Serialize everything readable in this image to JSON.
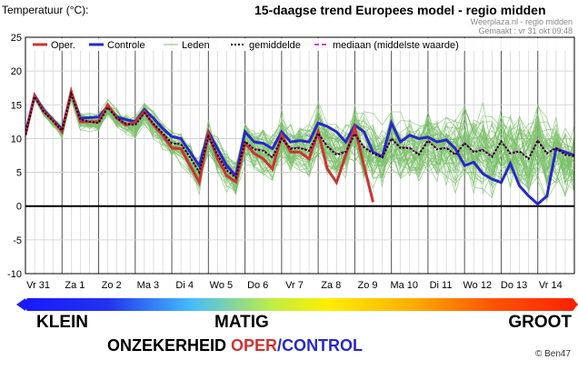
{
  "header": {
    "ylabel": "Temperatuur (°C):",
    "title": "15-daagse trend Europees model - regio midden",
    "source": "Weerplaza.nl - regio midden",
    "made": "Gemaakt : vr 31 okt 09:48"
  },
  "legend": {
    "oper": "Oper.",
    "control": "Controle",
    "members": "Leden",
    "mean": "gemiddelde",
    "median": "mediaan (middelste waarde)"
  },
  "scale": {
    "left": "KLEIN",
    "mid": "MATIG",
    "right": "GROOT",
    "word1": "ONZEKERHEID",
    "word2": "OPER",
    "slash": "/",
    "word3": "CONTROL"
  },
  "copyright": "© Ben47",
  "colors": {
    "oper": "#cc3333",
    "control": "#2828c8",
    "members": "#7ac06a",
    "mean": "#000000",
    "median": "#cc00cc",
    "zero_line": "#000000"
  },
  "chart_data": {
    "type": "line",
    "ylim": [
      -10,
      25
    ],
    "yticks": [
      -10,
      -5,
      0,
      5,
      10,
      15,
      20,
      25
    ],
    "xlim": [
      0,
      15
    ],
    "xticks": [
      {
        "x": 0.35,
        "label": "Vr 31"
      },
      {
        "x": 1.35,
        "label": "Za 1"
      },
      {
        "x": 2.35,
        "label": "Zo 2"
      },
      {
        "x": 3.35,
        "label": "Ma 3"
      },
      {
        "x": 4.35,
        "label": "Di 4"
      },
      {
        "x": 5.35,
        "label": "Wo 5"
      },
      {
        "x": 6.35,
        "label": "Do 6"
      },
      {
        "x": 7.35,
        "label": "Vr 7"
      },
      {
        "x": 8.35,
        "label": "Za 8"
      },
      {
        "x": 9.35,
        "label": "Zo 9"
      },
      {
        "x": 10.35,
        "label": "Ma 10"
      },
      {
        "x": 11.35,
        "label": "Di 11"
      },
      {
        "x": 12.35,
        "label": "Wo 12"
      },
      {
        "x": 13.35,
        "label": "Do 13"
      },
      {
        "x": 14.35,
        "label": "Vr 14"
      }
    ],
    "series": [
      {
        "name": "Oper.",
        "x": [
          0,
          0.25,
          0.5,
          0.75,
          1,
          1.25,
          1.5,
          1.75,
          2,
          2.25,
          2.5,
          2.75,
          3,
          3.25,
          3.5,
          3.75,
          4,
          4.25,
          4.5,
          4.75,
          5,
          5.25,
          5.5,
          5.75,
          6,
          6.25,
          6.5,
          6.75,
          7,
          7.25,
          7.5,
          7.75,
          8,
          8.25,
          8.5,
          8.75,
          9,
          9.25,
          9.5
        ],
        "y": [
          10.5,
          16.3,
          14,
          12.7,
          11,
          17,
          12.5,
          12.5,
          12.5,
          15,
          13,
          12,
          12.4,
          14,
          12,
          10.5,
          8.6,
          8.5,
          6,
          3.5,
          10.8,
          7,
          4.5,
          3.6,
          9.3,
          7.8,
          7,
          5.5,
          10.5,
          8,
          8,
          7,
          11,
          5.5,
          3.5,
          7.5,
          11.6,
          6,
          0.6
        ]
      },
      {
        "name": "Controle",
        "x": [
          0,
          0.25,
          0.5,
          0.75,
          1,
          1.25,
          1.5,
          1.75,
          2,
          2.25,
          2.5,
          2.75,
          3,
          3.25,
          3.5,
          3.75,
          4,
          4.25,
          4.5,
          4.75,
          5,
          5.25,
          5.5,
          5.75,
          6,
          6.25,
          6.5,
          6.75,
          7,
          7.25,
          7.5,
          7.75,
          8,
          8.25,
          8.5,
          8.75,
          9,
          9.25,
          9.5,
          9.75,
          10,
          10.25,
          10.5,
          10.75,
          11,
          11.25,
          11.5,
          11.75,
          12,
          12.25,
          12.5,
          12.75,
          13,
          13.25,
          13.5,
          13.75,
          14,
          14.25,
          14.5,
          14.75,
          15
        ],
        "y": [
          10.8,
          16.4,
          14.2,
          12.8,
          11.3,
          16.8,
          13,
          13.1,
          13.2,
          14.8,
          13.2,
          12.8,
          12.5,
          14.3,
          13,
          11.5,
          10.3,
          10,
          8,
          6,
          11,
          8.5,
          6,
          4.5,
          11,
          9.5,
          9.3,
          8.5,
          11,
          9.5,
          9.7,
          9.5,
          12.3,
          11.8,
          11,
          9.5,
          12,
          11,
          8,
          7.3,
          12.3,
          9.5,
          10.5,
          10,
          10.2,
          9.5,
          9.8,
          8.5,
          6,
          6.5,
          4.8,
          4,
          3.5,
          6.3,
          3,
          1.5,
          0.3,
          1.5,
          8.5,
          8,
          7.5
        ]
      },
      {
        "name": "gemiddelde",
        "x": [
          0,
          0.25,
          0.5,
          0.75,
          1,
          1.25,
          1.5,
          1.75,
          2,
          2.25,
          2.5,
          2.75,
          3,
          3.25,
          3.5,
          3.75,
          4,
          4.25,
          4.5,
          4.75,
          5,
          5.25,
          5.5,
          5.75,
          6,
          6.25,
          6.5,
          6.75,
          7,
          7.25,
          7.5,
          7.75,
          8,
          8.25,
          8.5,
          8.75,
          9,
          9.25,
          9.5,
          9.75,
          10,
          10.25,
          10.5,
          10.75,
          11,
          11.25,
          11.5,
          11.75,
          12,
          12.25,
          12.5,
          12.75,
          13,
          13.25,
          13.5,
          13.75,
          14,
          14.25,
          14.5,
          14.75,
          15
        ],
        "y": [
          10.6,
          16.2,
          14,
          12.6,
          11.2,
          16.6,
          12.8,
          12.5,
          12.3,
          14.6,
          13,
          12.2,
          12,
          13.8,
          12.2,
          10.8,
          9.3,
          9.2,
          7.2,
          5,
          10.3,
          7.6,
          5.3,
          4.2,
          9.6,
          8.4,
          8.2,
          7.2,
          10,
          8.5,
          8.6,
          8.2,
          10.8,
          8.8,
          7.6,
          8,
          10.7,
          8.7,
          7.8,
          7.2,
          10,
          8.6,
          8.6,
          7.6,
          9.7,
          8.4,
          8.6,
          7.6,
          9.3,
          8,
          8.3,
          7.3,
          9.6,
          7.8,
          8.1,
          7,
          9.7,
          7.8,
          8.6,
          7.6,
          7.4
        ]
      },
      {
        "name": "mediaan (middelste waarde)",
        "x": [
          0,
          0.25,
          0.5,
          0.75,
          1,
          1.25,
          1.5,
          1.75,
          2,
          2.25,
          2.5,
          2.75,
          3,
          3.25,
          3.5,
          3.75,
          4,
          4.25,
          4.5,
          4.75,
          5,
          5.25,
          5.5,
          5.75,
          6,
          6.25,
          6.5,
          6.75,
          7,
          7.25,
          7.5,
          7.75,
          8,
          8.25,
          8.5,
          8.75,
          9,
          9.25,
          9.5,
          9.75,
          10,
          10.25,
          10.5,
          10.75,
          11,
          11.25,
          11.5,
          11.75,
          12,
          12.25,
          12.5,
          12.75,
          13,
          13.25,
          13.5,
          13.75,
          14,
          14.25,
          14.5,
          14.75,
          15
        ],
        "y": [
          10.6,
          16.2,
          14,
          12.6,
          11.2,
          16.6,
          12.8,
          12.5,
          12.3,
          14.6,
          13,
          12.2,
          12,
          13.8,
          12.2,
          10.8,
          9.3,
          9.2,
          7.3,
          5.1,
          10.2,
          7.7,
          5.5,
          4.3,
          9.5,
          8.5,
          8.3,
          7.2,
          10,
          8.6,
          8.7,
          8.2,
          10.8,
          8.9,
          7.8,
          8.1,
          10.6,
          8.8,
          7.9,
          7.3,
          10,
          8.7,
          8.7,
          7.7,
          9.8,
          8.5,
          8.7,
          7.7,
          9.4,
          8.1,
          8.4,
          7.4,
          9.6,
          7.9,
          8.2,
          7.1,
          9.8,
          7.9,
          8.7,
          7.7,
          7.5
        ]
      }
    ],
    "members": {
      "name": "Leden",
      "count": 50,
      "x": [
        0,
        0.25,
        0.5,
        0.75,
        1,
        1.25,
        1.5,
        1.75,
        2,
        2.25,
        2.5,
        2.75,
        3,
        3.25,
        3.5,
        3.75,
        4,
        4.25,
        4.5,
        4.75,
        5,
        5.25,
        5.5,
        5.75,
        6,
        6.25,
        6.5,
        6.75,
        7,
        7.25,
        7.5,
        7.75,
        8,
        8.25,
        8.5,
        8.75,
        9,
        9.25,
        9.5,
        9.75,
        10,
        10.25,
        10.5,
        10.75,
        11,
        11.25,
        11.5,
        11.75,
        12,
        12.25,
        12.5,
        12.75,
        13,
        13.25,
        13.5,
        13.75,
        14,
        14.25,
        14.5,
        14.75,
        15
      ],
      "spread": [
        0.3,
        0.5,
        0.8,
        0.8,
        1,
        1,
        1.2,
        1.2,
        1.3,
        1.3,
        1.5,
        1.5,
        1.7,
        1.7,
        2,
        2,
        2.2,
        2.3,
        2.5,
        2.6,
        2.8,
        2.9,
        3,
        3.1,
        3.2,
        3.3,
        3.4,
        3.5,
        3.6,
        3.7,
        3.8,
        3.9,
        4,
        4.1,
        4.2,
        4.3,
        4.4,
        4.5,
        4.6,
        4.6,
        4.7,
        4.8,
        4.9,
        5,
        5.1,
        5.2,
        5.3,
        5.4,
        5.5,
        5.6,
        5.7,
        5.8,
        5.9,
        6,
        6,
        6.1,
        6.2,
        6.3,
        6.4,
        6.5,
        6.5
      ]
    },
    "grid": true,
    "xlabel": "",
    "ylabel": "Temperatuur (°C):"
  }
}
